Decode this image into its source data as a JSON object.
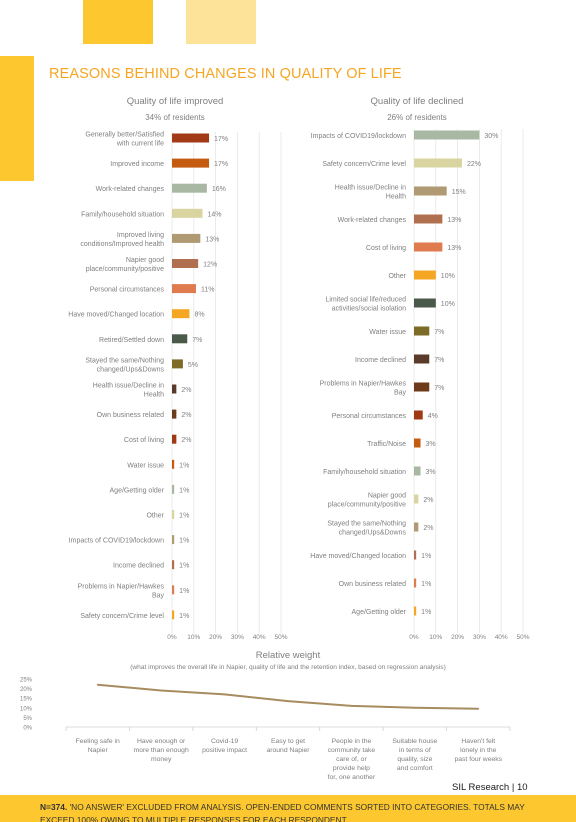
{
  "page": {
    "title": "REASONS BEHIND CHANGES IN QUALITY OF LIFE",
    "footer_sample": "n=374.",
    "footer_rest": " 'NO ANSWER' EXCLUDED FROM ANALYSIS. OPEN-ENDED COMMENTS SORTED INTO CATEGORIES. TOTALS MAY EXCEED 100% OWING TO MULTIPLE RESPONSES FOR EACH RESPONDENT",
    "page_label": "SIL Research | 10"
  },
  "colors": {
    "brand_yellow": "#fdc82f",
    "brand_light": "#fde39a",
    "title_orange": "#f5a623",
    "line": "#a68c5f"
  },
  "chart_data": [
    {
      "type": "bar",
      "orientation": "horizontal",
      "title": "Quality of life improved",
      "subtitle": "34% of residents",
      "categories": [
        "Generally better/Satisfied with current life",
        "Improved income",
        "Work-related changes",
        "Family/household situation",
        "Improved living conditions/Improved health",
        "Napier good place/community/positive",
        "Personal circumstances",
        "Have moved/Changed location",
        "Retired/Settled down",
        "Stayed the same/Nothing changed/Ups&Downs",
        "Health issue/Decline in Health",
        "Own business related",
        "Cost of living",
        "Water issue",
        "Age/Getting older",
        "Other",
        "Impacts of COVID19/lockdown",
        "Income declined",
        "Problems in Napier/Hawkes Bay",
        "Safety concern/Crime level"
      ],
      "values": [
        17,
        17,
        16,
        14,
        13,
        12,
        11,
        8,
        7,
        5,
        2,
        2,
        2,
        1,
        1,
        1,
        1,
        1,
        1,
        1
      ],
      "data_labels": [
        "17%",
        "17%",
        "16%",
        "14%",
        "13%",
        "12%",
        "11%",
        "8%",
        "7%",
        "5%",
        "2%",
        "2%",
        "2%",
        "1%",
        "1%",
        "1%",
        "1%",
        "1%",
        "1%",
        "1%"
      ],
      "bar_colors": [
        "#a33a17",
        "#c55a11",
        "#a9b8a3",
        "#d9d4a0",
        "#b09a73",
        "#b0704f",
        "#e07b50",
        "#f5a623",
        "#4a5a4a",
        "#7d6b28",
        "#5a3b2a",
        "#6d3a1a",
        "#a03a15",
        "#c55a11",
        "#a9b8a3",
        "#d9d4a0",
        "#b09a73",
        "#b0704f",
        "#e07b50",
        "#f5a623"
      ],
      "x_ticks": [
        "0%",
        "10%",
        "20%",
        "30%",
        "40%",
        "50%"
      ],
      "xlim": [
        0,
        50
      ],
      "grid": true
    },
    {
      "type": "bar",
      "orientation": "horizontal",
      "title": "Quality of life declined",
      "subtitle": "26% of residents",
      "categories": [
        "Impacts of COVID19/lockdown",
        "Safety concern/Crime level",
        "Health issue/Decline in Health",
        "Work-related changes",
        "Cost of living",
        "Other",
        "Limited social life/reduced activities/social isolation",
        "Water issue",
        "Income declined",
        "Problems in Napier/Hawkes Bay",
        "Personal circumstances",
        "Traffic/Noise",
        "Family/household situation",
        "Napier good place/community/positive",
        "Stayed the same/Nothing changed/Ups&Downs",
        "Have moved/Changed location",
        "Own business related",
        "Age/Getting older"
      ],
      "values": [
        30,
        22,
        15,
        13,
        13,
        10,
        10,
        7,
        7,
        7,
        4,
        3,
        3,
        2,
        2,
        1,
        1,
        1
      ],
      "data_labels": [
        "30%",
        "22%",
        "15%",
        "13%",
        "13%",
        "10%",
        "10%",
        "7%",
        "7%",
        "7%",
        "4%",
        "3%",
        "3%",
        "2%",
        "2%",
        "1%",
        "1%",
        "1%"
      ],
      "bar_colors": [
        "#a9b8a3",
        "#d9d4a0",
        "#b09a73",
        "#b0704f",
        "#e07b50",
        "#f5a623",
        "#4a5a4a",
        "#7d6b28",
        "#5a3b2a",
        "#6d3a1a",
        "#a03a15",
        "#c55a11",
        "#a9b8a3",
        "#d9d4a0",
        "#b09a73",
        "#b0704f",
        "#e07b50",
        "#f5a623"
      ],
      "x_ticks": [
        "0%",
        "10%",
        "20%",
        "30%",
        "40%",
        "50%"
      ],
      "xlim": [
        0,
        50
      ],
      "grid": true
    },
    {
      "type": "line",
      "title": "Relative weight",
      "subtitle": "(what improves the overall life in Napier, quality of life and the retention index, based on regression analysis)",
      "categories": [
        "Feeling safe in Napier",
        "Have enough or more than enough money",
        "Covid-19 positive impact",
        "Easy to get around Napier",
        "People in the community take care of, or provide help for, one another",
        "Suitable house in terms of quality, size and comfort",
        "Haven't felt lonely in the past four weeks"
      ],
      "values": [
        22,
        19,
        17,
        13.5,
        11,
        10,
        9.5
      ],
      "y_ticks": [
        "0%",
        "5%",
        "10%",
        "15%",
        "20%",
        "25%"
      ],
      "ylim": [
        0,
        25
      ],
      "grid": false,
      "color": "#a68c5f"
    }
  ]
}
